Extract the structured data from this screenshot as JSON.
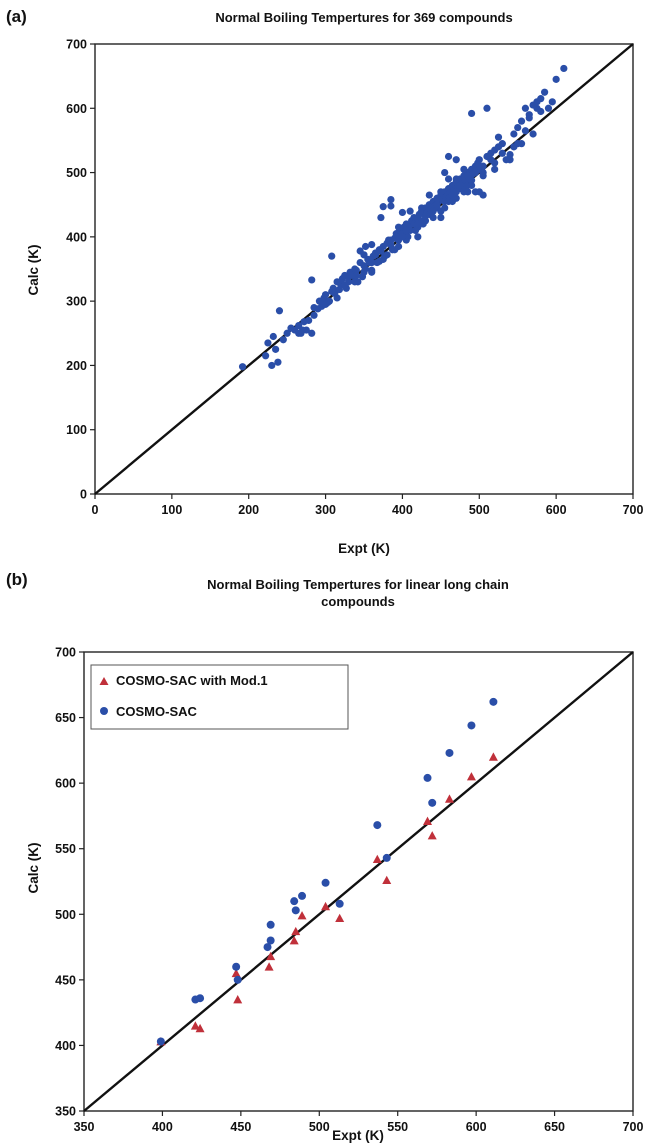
{
  "chart_data": [
    {
      "panel_label": "(a)",
      "type": "scatter",
      "title": "Normal Boiling Tempertures for 369 compounds",
      "xlabel": "Expt (K)",
      "ylabel": "Calc (K)",
      "xlim": [
        0,
        700
      ],
      "ylim": [
        0,
        700
      ],
      "xticks": [
        0,
        100,
        200,
        300,
        400,
        500,
        600,
        700
      ],
      "yticks": [
        0,
        100,
        200,
        300,
        400,
        500,
        600,
        700
      ],
      "grid": false,
      "reference_line": "y = x",
      "colors": {
        "points": "#2a4ea8",
        "line": "#111111"
      },
      "series": [
        {
          "points": [
            [
              192,
              198
            ],
            [
              222,
              215
            ],
            [
              225,
              235
            ],
            [
              230,
              200
            ],
            [
              232,
              245
            ],
            [
              235,
              225
            ],
            [
              238,
              205
            ],
            [
              240,
              285
            ],
            [
              245,
              240
            ],
            [
              250,
              250
            ],
            [
              255,
              258
            ],
            [
              260,
              255
            ],
            [
              265,
              262
            ],
            [
              268,
              250
            ],
            [
              272,
              268
            ],
            [
              275,
              255
            ],
            [
              278,
              270
            ],
            [
              282,
              250
            ],
            [
              285,
              278
            ],
            [
              290,
              288
            ],
            [
              292,
              300
            ],
            [
              295,
              292
            ],
            [
              298,
              305
            ],
            [
              300,
              310
            ],
            [
              303,
              298
            ],
            [
              305,
              300
            ],
            [
              308,
              315
            ],
            [
              310,
              320
            ],
            [
              312,
              312
            ],
            [
              315,
              330
            ],
            [
              318,
              318
            ],
            [
              320,
              325
            ],
            [
              322,
              335
            ],
            [
              325,
              340
            ],
            [
              327,
              320
            ],
            [
              330,
              338
            ],
            [
              332,
              345
            ],
            [
              335,
              340
            ],
            [
              338,
              350
            ],
            [
              340,
              348
            ],
            [
              342,
              330
            ],
            [
              345,
              360
            ],
            [
              348,
              338
            ],
            [
              350,
              355
            ],
            [
              352,
              350
            ],
            [
              355,
              365
            ],
            [
              357,
              360
            ],
            [
              360,
              348
            ],
            [
              362,
              370
            ],
            [
              365,
              372
            ],
            [
              367,
              360
            ],
            [
              370,
              380
            ],
            [
              372,
              378
            ],
            [
              375,
              385
            ],
            [
              377,
              370
            ],
            [
              380,
              390
            ],
            [
              382,
              395
            ],
            [
              385,
              388
            ],
            [
              387,
              380
            ],
            [
              390,
              398
            ],
            [
              392,
              405
            ],
            [
              395,
              400
            ],
            [
              397,
              410
            ],
            [
              400,
              405
            ],
            [
              402,
              415
            ],
            [
              405,
              420
            ],
            [
              407,
              400
            ],
            [
              410,
              418
            ],
            [
              412,
              425
            ],
            [
              415,
              430
            ],
            [
              417,
              410
            ],
            [
              420,
              428
            ],
            [
              422,
              435
            ],
            [
              425,
              440
            ],
            [
              427,
              420
            ],
            [
              430,
              445
            ],
            [
              432,
              438
            ],
            [
              435,
              450
            ],
            [
              437,
              442
            ],
            [
              440,
              455
            ],
            [
              442,
              448
            ],
            [
              445,
              460
            ],
            [
              447,
              455
            ],
            [
              450,
              465
            ],
            [
              452,
              458
            ],
            [
              455,
              470
            ],
            [
              457,
              462
            ],
            [
              460,
              475
            ],
            [
              462,
              468
            ],
            [
              465,
              480
            ],
            [
              467,
              472
            ],
            [
              470,
              485
            ],
            [
              472,
              478
            ],
            [
              475,
              490
            ],
            [
              477,
              482
            ],
            [
              480,
              495
            ],
            [
              482,
              488
            ],
            [
              485,
              500
            ],
            [
              487,
              492
            ],
            [
              490,
              505
            ],
            [
              492,
              498
            ],
            [
              495,
              510
            ],
            [
              498,
              515
            ],
            [
              500,
              520
            ],
            [
              505,
              510
            ],
            [
              510,
              525
            ],
            [
              515,
              530
            ],
            [
              520,
              535
            ],
            [
              525,
              540
            ],
            [
              530,
              545
            ],
            [
              540,
              520
            ],
            [
              545,
              560
            ],
            [
              550,
              570
            ],
            [
              555,
              580
            ],
            [
              560,
              600
            ],
            [
              565,
              590
            ],
            [
              570,
              605
            ],
            [
              575,
              610
            ],
            [
              580,
              615
            ],
            [
              585,
              625
            ],
            [
              600,
              645
            ],
            [
              610,
              662
            ],
            [
              282,
              333
            ],
            [
              308,
              370
            ],
            [
              352,
              385
            ],
            [
              372,
              430
            ],
            [
              375,
              447
            ],
            [
              385,
              448
            ],
            [
              385,
              458
            ],
            [
              400,
              438
            ],
            [
              410,
              440
            ],
            [
              420,
              400
            ],
            [
              435,
              465
            ],
            [
              450,
              430
            ],
            [
              450,
              470
            ],
            [
              455,
              500
            ],
            [
              460,
              525
            ],
            [
              470,
              520
            ],
            [
              480,
              470
            ],
            [
              495,
              470
            ],
            [
              500,
              470
            ],
            [
              505,
              465
            ],
            [
              510,
              600
            ],
            [
              520,
              505
            ],
            [
              490,
              592
            ],
            [
              540,
              528
            ],
            [
              565,
              585
            ],
            [
              330,
              330
            ],
            [
              338,
              330
            ],
            [
              360,
              345
            ],
            [
              370,
              362
            ],
            [
              375,
              365
            ],
            [
              380,
              372
            ],
            [
              395,
              415
            ],
            [
              405,
              395
            ],
            [
              410,
              410
            ],
            [
              420,
              415
            ],
            [
              425,
              425
            ],
            [
              430,
              425
            ],
            [
              440,
              440
            ],
            [
              445,
              445
            ],
            [
              460,
              460
            ],
            [
              465,
              465
            ],
            [
              470,
              470
            ],
            [
              475,
              475
            ],
            [
              480,
              478
            ],
            [
              485,
              480
            ],
            [
              490,
              488
            ],
            [
              500,
              505
            ],
            [
              505,
              500
            ],
            [
              265,
              250
            ],
            [
              270,
              255
            ],
            [
              285,
              290
            ],
            [
              295,
              300
            ],
            [
              300,
              295
            ],
            [
              315,
              305
            ],
            [
              325,
              325
            ],
            [
              340,
              340
            ],
            [
              350,
              345
            ],
            [
              360,
              360
            ],
            [
              365,
              375
            ],
            [
              385,
              395
            ],
            [
              395,
              395
            ],
            [
              400,
              400
            ],
            [
              405,
              410
            ],
            [
              415,
              420
            ],
            [
              425,
              445
            ],
            [
              435,
              435
            ],
            [
              445,
              450
            ],
            [
              455,
              455
            ],
            [
              460,
              455
            ],
            [
              475,
              480
            ],
            [
              485,
              495
            ],
            [
              495,
              500
            ],
            [
              350,
              372
            ],
            [
              345,
              378
            ],
            [
              360,
              388
            ],
            [
              390,
              380
            ],
            [
              395,
              385
            ],
            [
              420,
              420
            ],
            [
              430,
              432
            ],
            [
              440,
              430
            ],
            [
              450,
              440
            ],
            [
              455,
              445
            ],
            [
              465,
              455
            ],
            [
              470,
              460
            ],
            [
              485,
              470
            ],
            [
              490,
              480
            ],
            [
              505,
              495
            ],
            [
              515,
              520
            ],
            [
              520,
              515
            ],
            [
              530,
              530
            ],
            [
              535,
              520
            ],
            [
              545,
              540
            ],
            [
              555,
              545
            ],
            [
              560,
              565
            ],
            [
              570,
              560
            ],
            [
              575,
              600
            ],
            [
              580,
              595
            ],
            [
              590,
              600
            ],
            [
              595,
              610
            ],
            [
              550,
              545
            ],
            [
              525,
              555
            ],
            [
              470,
              490
            ],
            [
              480,
              505
            ],
            [
              460,
              490
            ]
          ]
        }
      ]
    },
    {
      "panel_label": "(b)",
      "type": "scatter",
      "title": "Normal Boiling Tempertures for linear long chain compounds",
      "title_lines": [
        "Normal Boiling Tempertures for linear long chain",
        "compounds"
      ],
      "xlabel": "Expt (K)",
      "ylabel": "Calc (K)",
      "xlim": [
        350,
        700
      ],
      "ylim": [
        350,
        700
      ],
      "xticks": [
        350,
        400,
        450,
        500,
        550,
        600,
        650,
        700
      ],
      "yticks": [
        350,
        400,
        450,
        500,
        550,
        600,
        650,
        700
      ],
      "grid": false,
      "reference_line": "y = x",
      "legend_position": "top-left",
      "colors": {
        "line": "#111111"
      },
      "series": [
        {
          "name": "COSMO-SAC with Mod.1",
          "marker": "triangle",
          "color": "#c0303a",
          "points": [
            [
              399,
              403
            ],
            [
              421,
              415
            ],
            [
              424,
              413
            ],
            [
              448,
              435
            ],
            [
              447,
              455
            ],
            [
              468,
              460
            ],
            [
              469,
              468
            ],
            [
              484,
              480
            ],
            [
              485,
              487
            ],
            [
              489,
              499
            ],
            [
              504,
              506
            ],
            [
              513,
              497
            ],
            [
              537,
              542
            ],
            [
              543,
              526
            ],
            [
              569,
              571
            ],
            [
              572,
              560
            ],
            [
              583,
              588
            ],
            [
              597,
              605
            ],
            [
              611,
              620
            ]
          ]
        },
        {
          "name": "COSMO-SAC",
          "marker": "circle",
          "color": "#2a4ea8",
          "points": [
            [
              399,
              403
            ],
            [
              421,
              435
            ],
            [
              424,
              436
            ],
            [
              447,
              460
            ],
            [
              448,
              450
            ],
            [
              467,
              475
            ],
            [
              469,
              480
            ],
            [
              469,
              492
            ],
            [
              484,
              510
            ],
            [
              485,
              503
            ],
            [
              489,
              514
            ],
            [
              504,
              524
            ],
            [
              513,
              508
            ],
            [
              537,
              568
            ],
            [
              543,
              543
            ],
            [
              569,
              604
            ],
            [
              572,
              585
            ],
            [
              583,
              623
            ],
            [
              597,
              644
            ],
            [
              611,
              662
            ]
          ]
        }
      ]
    }
  ]
}
